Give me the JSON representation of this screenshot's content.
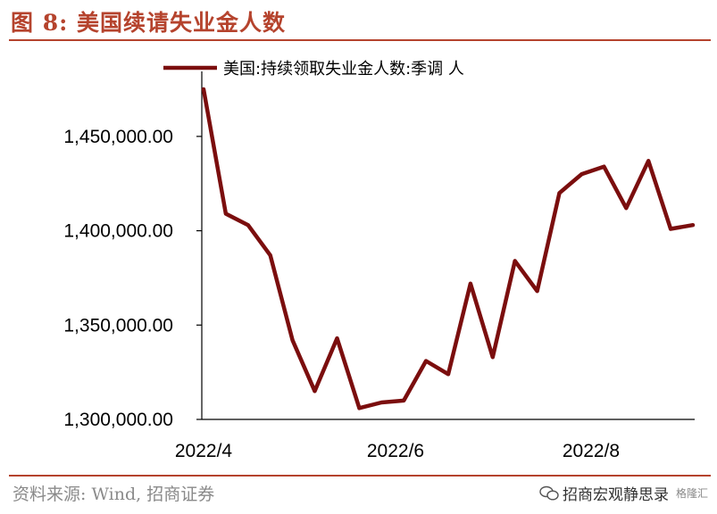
{
  "figure_title": "图 8:  美国续请失业金人数",
  "source": "资料来源:  Wind,  招商证券",
  "watermark": "招商宏观静思录",
  "watermark_badge": "格隆汇",
  "colors": {
    "series": "#7b0e0e",
    "accent": "#b5432d"
  },
  "chart_data": {
    "type": "line",
    "x_tick_labels": [
      "2022/4",
      "2022/6",
      "2022/8"
    ],
    "y_tick_labels": [
      "1,300,000.00",
      "1,350,000.00",
      "1,400,000.00",
      "1,450,000.00"
    ],
    "y_ticks": [
      1300000,
      1350000,
      1400000,
      1450000
    ],
    "ylim": [
      1300000,
      1475000
    ],
    "grid": false,
    "legend_position": "top",
    "series": [
      {
        "name": "美国:持续领取失业金人数:季调 人",
        "values": [
          1475000,
          1409000,
          1403000,
          1387000,
          1342000,
          1315000,
          1343000,
          1306000,
          1309000,
          1310000,
          1331000,
          1324000,
          1372000,
          1333000,
          1384000,
          1368000,
          1420000,
          1430000,
          1434000,
          1412000,
          1437000,
          1401000,
          1403000
        ]
      }
    ]
  }
}
